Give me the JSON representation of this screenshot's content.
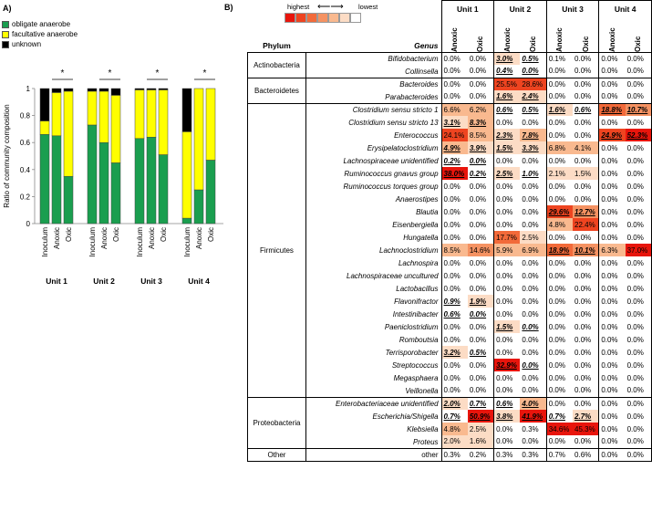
{
  "panel_a": {
    "label": "A)",
    "legend": [
      {
        "name": "obligate anaerobe",
        "color": "#1a9e4f"
      },
      {
        "name": "facultative anaerobe",
        "color": "#ffff00"
      },
      {
        "name": "unknown",
        "color": "#000000"
      }
    ],
    "chart_data": {
      "type": "bar",
      "stacked": true,
      "ylabel": "Ratio of community composition",
      "ylim": [
        0,
        1
      ],
      "yticks": [
        "0",
        "0.2",
        "0.4",
        "0.6",
        "0.8",
        "1"
      ],
      "significance": "*",
      "groups": [
        {
          "name": "Unit 1",
          "categories": [
            "Inoculum",
            "Anoxic",
            "Oxic"
          ],
          "obligate": [
            0.66,
            0.65,
            0.35
          ],
          "facultative": [
            0.1,
            0.32,
            0.63
          ],
          "unknown": [
            0.24,
            0.03,
            0.02
          ]
        },
        {
          "name": "Unit 2",
          "categories": [
            "Inoculum",
            "Anoxic",
            "Oxic"
          ],
          "obligate": [
            0.73,
            0.6,
            0.45
          ],
          "facultative": [
            0.25,
            0.38,
            0.5
          ],
          "unknown": [
            0.02,
            0.02,
            0.05
          ]
        },
        {
          "name": "Unit 3",
          "categories": [
            "Inoculum",
            "Anoxic",
            "Oxic"
          ],
          "obligate": [
            0.63,
            0.64,
            0.51
          ],
          "facultative": [
            0.36,
            0.35,
            0.48
          ],
          "unknown": [
            0.01,
            0.01,
            0.01
          ]
        },
        {
          "name": "Unit 4",
          "categories": [
            "Inoculum",
            "Anoxic",
            "Oxic"
          ],
          "obligate": [
            0.04,
            0.25,
            0.47
          ],
          "facultative": [
            0.64,
            0.75,
            0.53
          ],
          "unknown": [
            0.32,
            0.0,
            0.0
          ]
        }
      ]
    }
  },
  "panel_b": {
    "label": "B)",
    "scale": {
      "highest": "highest",
      "lowest": "lowest",
      "arrow": "⟵⟶",
      "colors": [
        "#e8150c",
        "#ee4420",
        "#f26a3a",
        "#f59262",
        "#f9b98f",
        "#fcdcc5",
        "#ffffff"
      ]
    },
    "header": {
      "phylum": "Phylum",
      "genus": "Genus",
      "units": [
        "Unit 1",
        "Unit 2",
        "Unit 3",
        "Unit 4"
      ],
      "conditions": [
        "Anoxic",
        "Oxic"
      ]
    },
    "phyla": [
      {
        "name": "Actinobacteria",
        "rows": [
          {
            "genus": "Bifidobacterium",
            "values": [
              "0.0%",
              "0.0%",
              "3.0%",
              "0.5%",
              "0.1%",
              "0.0%",
              "0.0%",
              "0.0%"
            ],
            "sig": [
              2,
              3
            ]
          },
          {
            "genus": "Collinsella",
            "values": [
              "0.0%",
              "0.0%",
              "0.4%",
              "0.0%",
              "0.0%",
              "0.0%",
              "0.0%",
              "0.0%"
            ],
            "sig": [
              2,
              3
            ]
          }
        ]
      },
      {
        "name": "Bacteroidetes",
        "rows": [
          {
            "genus": "Bacteroides",
            "values": [
              "0.0%",
              "0.0%",
              "25.5%",
              "28.6%",
              "0.0%",
              "0.0%",
              "0.0%",
              "0.0%"
            ],
            "sig": []
          },
          {
            "genus": "Parabacteroides",
            "values": [
              "0.0%",
              "0.0%",
              "1.6%",
              "2.4%",
              "0.0%",
              "0.0%",
              "0.0%",
              "0.0%"
            ],
            "sig": [
              2,
              3
            ]
          }
        ]
      },
      {
        "name": "Firmicutes",
        "rows": [
          {
            "genus": "Clostridium sensu stricto 1",
            "values": [
              "6.6%",
              "6.2%",
              "0.6%",
              "0.5%",
              "1.6%",
              "0.6%",
              "18.8%",
              "10.7%"
            ],
            "sig": [
              2,
              3,
              4,
              5,
              6,
              7
            ]
          },
          {
            "genus": "Clostridium sensu stricto 13",
            "values": [
              "3.1%",
              "8.3%",
              "0.0%",
              "0.0%",
              "0.0%",
              "0.0%",
              "0.0%",
              "0.0%"
            ],
            "sig": [
              0,
              1
            ]
          },
          {
            "genus": "Enterococcus",
            "values": [
              "24.1%",
              "8.5%",
              "2.3%",
              "7.8%",
              "0.0%",
              "0.0%",
              "24.9%",
              "52.3%"
            ],
            "sig": [
              2,
              3,
              6,
              7
            ]
          },
          {
            "genus": "Erysipelatoclostridium",
            "values": [
              "4.9%",
              "3.9%",
              "1.5%",
              "3.3%",
              "6.8%",
              "4.1%",
              "0.0%",
              "0.0%"
            ],
            "sig": [
              0,
              1,
              2,
              3
            ]
          },
          {
            "genus": "Lachnospiraceae unidentified",
            "values": [
              "0.2%",
              "0.0%",
              "0.0%",
              "0.0%",
              "0.0%",
              "0.0%",
              "0.0%",
              "0.0%"
            ],
            "sig": [
              0,
              1
            ]
          },
          {
            "genus": "Ruminococcus gnavus group",
            "values": [
              "38.0%",
              "0.2%",
              "2.5%",
              "1.0%",
              "2.1%",
              "1.5%",
              "0.0%",
              "0.0%"
            ],
            "sig": [
              0,
              1,
              2,
              3
            ]
          },
          {
            "genus": "Ruminococcus torques group",
            "values": [
              "0.0%",
              "0.0%",
              "0.0%",
              "0.0%",
              "0.0%",
              "0.0%",
              "0.0%",
              "0.0%"
            ],
            "sig": []
          },
          {
            "genus": "Anaerostipes",
            "values": [
              "0.0%",
              "0.0%",
              "0.0%",
              "0.0%",
              "0.0%",
              "0.0%",
              "0.0%",
              "0.0%"
            ],
            "sig": []
          },
          {
            "genus": "Blautia",
            "values": [
              "0.0%",
              "0.0%",
              "0.0%",
              "0.0%",
              "29.6%",
              "12.7%",
              "0.0%",
              "0.0%"
            ],
            "sig": [
              4,
              5
            ]
          },
          {
            "genus": "Eisenbergiella",
            "values": [
              "0.0%",
              "0.0%",
              "0.0%",
              "0.0%",
              "4.8%",
              "22.4%",
              "0.0%",
              "0.0%"
            ],
            "sig": []
          },
          {
            "genus": "Hungatella",
            "values": [
              "0.0%",
              "0.0%",
              "17.7%",
              "2.5%",
              "0.0%",
              "0.0%",
              "0.0%",
              "0.0%"
            ],
            "sig": []
          },
          {
            "genus": "Lachnoclostridium",
            "values": [
              "8.5%",
              "14.6%",
              "5.9%",
              "6.9%",
              "18.9%",
              "10.1%",
              "6.3%",
              "37.0%"
            ],
            "sig": [
              4,
              5
            ]
          },
          {
            "genus": "Lachnospira",
            "values": [
              "0.0%",
              "0.0%",
              "0.0%",
              "0.0%",
              "0.0%",
              "0.0%",
              "0.0%",
              "0.0%"
            ],
            "sig": []
          },
          {
            "genus": "Lachnospiraceae uncultured",
            "values": [
              "0.0%",
              "0.0%",
              "0.0%",
              "0.0%",
              "0.0%",
              "0.0%",
              "0.0%",
              "0.0%"
            ],
            "sig": []
          },
          {
            "genus": "Lactobacillus",
            "values": [
              "0.0%",
              "0.0%",
              "0.0%",
              "0.0%",
              "0.0%",
              "0.0%",
              "0.0%",
              "0.0%"
            ],
            "sig": []
          },
          {
            "genus": "Flavonifractor",
            "values": [
              "0.9%",
              "1.9%",
              "0.0%",
              "0.0%",
              "0.0%",
              "0.0%",
              "0.0%",
              "0.0%"
            ],
            "sig": [
              0,
              1
            ]
          },
          {
            "genus": "Intestinibacter",
            "values": [
              "0.6%",
              "0.0%",
              "0.0%",
              "0.0%",
              "0.0%",
              "0.0%",
              "0.0%",
              "0.0%"
            ],
            "sig": [
              0,
              1
            ]
          },
          {
            "genus": "Paeniclostridium",
            "values": [
              "0.0%",
              "0.0%",
              "1.5%",
              "0.0%",
              "0.0%",
              "0.0%",
              "0.0%",
              "0.0%"
            ],
            "sig": [
              2,
              3
            ]
          },
          {
            "genus": "Romboutsia",
            "values": [
              "0.0%",
              "0.0%",
              "0.0%",
              "0.0%",
              "0.0%",
              "0.0%",
              "0.0%",
              "0.0%"
            ],
            "sig": []
          },
          {
            "genus": "Terrisporobacter",
            "values": [
              "3.2%",
              "0.5%",
              "0.0%",
              "0.0%",
              "0.0%",
              "0.0%",
              "0.0%",
              "0.0%"
            ],
            "sig": [
              0,
              1
            ]
          },
          {
            "genus": "Streptococcus",
            "values": [
              "0.0%",
              "0.0%",
              "32.9%",
              "0.0%",
              "0.0%",
              "0.0%",
              "0.0%",
              "0.0%"
            ],
            "sig": [
              2,
              3
            ]
          },
          {
            "genus": "Megasphaera",
            "values": [
              "0.0%",
              "0.0%",
              "0.0%",
              "0.0%",
              "0.0%",
              "0.0%",
              "0.0%",
              "0.0%"
            ],
            "sig": []
          },
          {
            "genus": "Veillonella",
            "values": [
              "0.0%",
              "0.0%",
              "0.0%",
              "0.0%",
              "0.0%",
              "0.0%",
              "0.0%",
              "0.0%"
            ],
            "sig": []
          }
        ]
      },
      {
        "name": "Proteobacteria",
        "rows": [
          {
            "genus": "Enterobacteriaceae unidentified",
            "values": [
              "2.0%",
              "0.7%",
              "0.6%",
              "4.0%",
              "0.0%",
              "0.0%",
              "0.0%",
              "0.0%"
            ],
            "sig": [
              0,
              1,
              2,
              3
            ]
          },
          {
            "genus": "Escherichia/Shigella",
            "values": [
              "0.7%",
              "50.9%",
              "3.8%",
              "41.9%",
              "0.7%",
              "2.7%",
              "0.0%",
              "0.0%"
            ],
            "sig": [
              0,
              1,
              2,
              3,
              4,
              5
            ]
          },
          {
            "genus": "Klebsiella",
            "values": [
              "4.8%",
              "2.5%",
              "0.0%",
              "0.3%",
              "34.6%",
              "45.3%",
              "0.0%",
              "0.0%"
            ],
            "sig": []
          },
          {
            "genus": "Proteus",
            "values": [
              "2.0%",
              "1.6%",
              "0.0%",
              "0.0%",
              "0.0%",
              "0.0%",
              "0.0%",
              "0.0%"
            ],
            "sig": []
          }
        ]
      },
      {
        "name": "Other",
        "rows": [
          {
            "genus": "other",
            "values": [
              "0.3%",
              "0.2%",
              "0.3%",
              "0.3%",
              "0.7%",
              "0.6%",
              "0.0%",
              "0.0%"
            ],
            "sig": [],
            "upright": true
          }
        ]
      }
    ]
  }
}
